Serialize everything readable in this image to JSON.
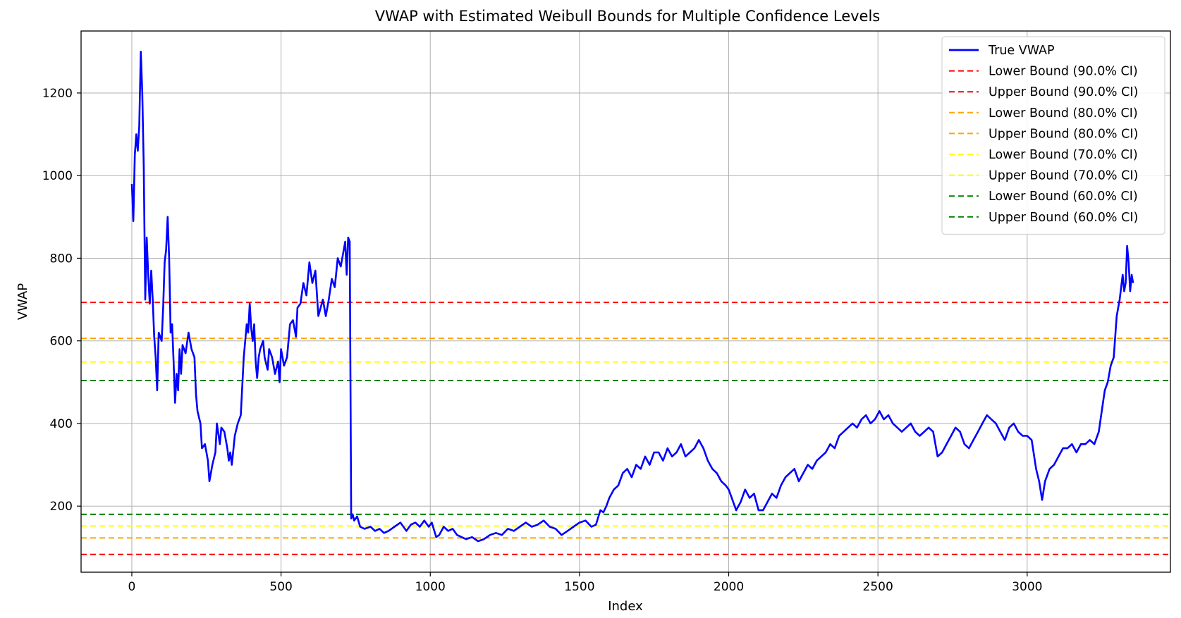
{
  "chart_data": {
    "type": "line",
    "title": "VWAP with Estimated Weibull Bounds for Multiple Confidence Levels",
    "xlabel": "Index",
    "ylabel": "VWAP",
    "xlim": [
      -170,
      3480
    ],
    "ylim": [
      40,
      1350
    ],
    "xticks": [
      0,
      500,
      1000,
      1500,
      2000,
      2500,
      3000
    ],
    "yticks": [
      200,
      400,
      600,
      800,
      1000,
      1200
    ],
    "grid": true,
    "legend_position": "top-right",
    "series": [
      {
        "name": "True VWAP",
        "color": "#0000ff",
        "style": "solid",
        "points": [
          [
            0,
            980
          ],
          [
            5,
            890
          ],
          [
            10,
            1050
          ],
          [
            15,
            1100
          ],
          [
            20,
            1060
          ],
          [
            25,
            1120
          ],
          [
            30,
            1300
          ],
          [
            35,
            1200
          ],
          [
            40,
            1020
          ],
          [
            45,
            700
          ],
          [
            50,
            850
          ],
          [
            55,
            760
          ],
          [
            60,
            690
          ],
          [
            65,
            770
          ],
          [
            70,
            700
          ],
          [
            75,
            610
          ],
          [
            80,
            560
          ],
          [
            85,
            480
          ],
          [
            90,
            620
          ],
          [
            100,
            600
          ],
          [
            105,
            680
          ],
          [
            110,
            790
          ],
          [
            115,
            820
          ],
          [
            120,
            900
          ],
          [
            125,
            800
          ],
          [
            130,
            620
          ],
          [
            135,
            640
          ],
          [
            140,
            550
          ],
          [
            145,
            450
          ],
          [
            150,
            520
          ],
          [
            155,
            480
          ],
          [
            160,
            580
          ],
          [
            165,
            520
          ],
          [
            170,
            590
          ],
          [
            180,
            570
          ],
          [
            190,
            620
          ],
          [
            200,
            580
          ],
          [
            210,
            560
          ],
          [
            215,
            470
          ],
          [
            220,
            430
          ],
          [
            230,
            400
          ],
          [
            235,
            340
          ],
          [
            245,
            350
          ],
          [
            255,
            310
          ],
          [
            260,
            260
          ],
          [
            270,
            300
          ],
          [
            280,
            330
          ],
          [
            285,
            400
          ],
          [
            295,
            350
          ],
          [
            300,
            390
          ],
          [
            310,
            380
          ],
          [
            320,
            340
          ],
          [
            325,
            310
          ],
          [
            330,
            330
          ],
          [
            335,
            300
          ],
          [
            345,
            370
          ],
          [
            355,
            400
          ],
          [
            365,
            420
          ],
          [
            375,
            560
          ],
          [
            385,
            640
          ],
          [
            390,
            620
          ],
          [
            395,
            690
          ],
          [
            400,
            630
          ],
          [
            405,
            600
          ],
          [
            410,
            640
          ],
          [
            415,
            550
          ],
          [
            420,
            510
          ],
          [
            425,
            560
          ],
          [
            430,
            580
          ],
          [
            440,
            600
          ],
          [
            445,
            560
          ],
          [
            455,
            530
          ],
          [
            460,
            580
          ],
          [
            470,
            560
          ],
          [
            480,
            520
          ],
          [
            490,
            550
          ],
          [
            495,
            500
          ],
          [
            500,
            580
          ],
          [
            510,
            540
          ],
          [
            520,
            560
          ],
          [
            530,
            640
          ],
          [
            540,
            650
          ],
          [
            550,
            610
          ],
          [
            555,
            680
          ],
          [
            565,
            690
          ],
          [
            575,
            740
          ],
          [
            585,
            710
          ],
          [
            595,
            790
          ],
          [
            605,
            740
          ],
          [
            615,
            770
          ],
          [
            625,
            660
          ],
          [
            640,
            700
          ],
          [
            650,
            660
          ],
          [
            660,
            700
          ],
          [
            670,
            750
          ],
          [
            680,
            730
          ],
          [
            690,
            800
          ],
          [
            700,
            780
          ],
          [
            710,
            820
          ],
          [
            715,
            840
          ],
          [
            720,
            760
          ],
          [
            725,
            850
          ],
          [
            730,
            840
          ],
          [
            735,
            170
          ],
          [
            740,
            180
          ],
          [
            745,
            165
          ],
          [
            755,
            175
          ],
          [
            765,
            150
          ],
          [
            780,
            145
          ],
          [
            800,
            150
          ],
          [
            815,
            140
          ],
          [
            830,
            145
          ],
          [
            845,
            135
          ],
          [
            860,
            140
          ],
          [
            880,
            150
          ],
          [
            900,
            160
          ],
          [
            920,
            140
          ],
          [
            935,
            155
          ],
          [
            950,
            160
          ],
          [
            965,
            150
          ],
          [
            980,
            165
          ],
          [
            995,
            150
          ],
          [
            1005,
            160
          ],
          [
            1020,
            125
          ],
          [
            1030,
            130
          ],
          [
            1045,
            150
          ],
          [
            1060,
            140
          ],
          [
            1075,
            145
          ],
          [
            1090,
            130
          ],
          [
            1105,
            125
          ],
          [
            1120,
            120
          ],
          [
            1140,
            125
          ],
          [
            1160,
            115
          ],
          [
            1180,
            120
          ],
          [
            1200,
            130
          ],
          [
            1220,
            135
          ],
          [
            1240,
            130
          ],
          [
            1260,
            145
          ],
          [
            1280,
            140
          ],
          [
            1300,
            150
          ],
          [
            1320,
            160
          ],
          [
            1340,
            150
          ],
          [
            1360,
            155
          ],
          [
            1380,
            165
          ],
          [
            1400,
            150
          ],
          [
            1420,
            145
          ],
          [
            1440,
            130
          ],
          [
            1460,
            140
          ],
          [
            1480,
            150
          ],
          [
            1500,
            160
          ],
          [
            1520,
            165
          ],
          [
            1540,
            150
          ],
          [
            1555,
            155
          ],
          [
            1570,
            190
          ],
          [
            1580,
            185
          ],
          [
            1590,
            200
          ],
          [
            1600,
            220
          ],
          [
            1615,
            240
          ],
          [
            1630,
            250
          ],
          [
            1645,
            280
          ],
          [
            1660,
            290
          ],
          [
            1675,
            270
          ],
          [
            1690,
            300
          ],
          [
            1705,
            290
          ],
          [
            1720,
            320
          ],
          [
            1735,
            300
          ],
          [
            1750,
            330
          ],
          [
            1765,
            330
          ],
          [
            1780,
            310
          ],
          [
            1795,
            340
          ],
          [
            1810,
            320
          ],
          [
            1825,
            330
          ],
          [
            1840,
            350
          ],
          [
            1855,
            320
          ],
          [
            1870,
            330
          ],
          [
            1885,
            340
          ],
          [
            1900,
            360
          ],
          [
            1915,
            340
          ],
          [
            1930,
            310
          ],
          [
            1945,
            290
          ],
          [
            1960,
            280
          ],
          [
            1975,
            260
          ],
          [
            1990,
            250
          ],
          [
            2000,
            240
          ],
          [
            2010,
            220
          ],
          [
            2025,
            190
          ],
          [
            2040,
            210
          ],
          [
            2055,
            240
          ],
          [
            2070,
            220
          ],
          [
            2085,
            230
          ],
          [
            2100,
            190
          ],
          [
            2115,
            190
          ],
          [
            2130,
            210
          ],
          [
            2145,
            230
          ],
          [
            2160,
            220
          ],
          [
            2175,
            250
          ],
          [
            2190,
            270
          ],
          [
            2205,
            280
          ],
          [
            2220,
            290
          ],
          [
            2235,
            260
          ],
          [
            2250,
            280
          ],
          [
            2265,
            300
          ],
          [
            2280,
            290
          ],
          [
            2295,
            310
          ],
          [
            2310,
            320
          ],
          [
            2325,
            330
          ],
          [
            2340,
            350
          ],
          [
            2355,
            340
          ],
          [
            2370,
            370
          ],
          [
            2385,
            380
          ],
          [
            2400,
            390
          ],
          [
            2415,
            400
          ],
          [
            2430,
            390
          ],
          [
            2445,
            410
          ],
          [
            2460,
            420
          ],
          [
            2475,
            400
          ],
          [
            2490,
            410
          ],
          [
            2505,
            430
          ],
          [
            2520,
            410
          ],
          [
            2535,
            420
          ],
          [
            2550,
            400
          ],
          [
            2565,
            390
          ],
          [
            2580,
            380
          ],
          [
            2595,
            390
          ],
          [
            2610,
            400
          ],
          [
            2625,
            380
          ],
          [
            2640,
            370
          ],
          [
            2655,
            380
          ],
          [
            2670,
            390
          ],
          [
            2685,
            380
          ],
          [
            2700,
            320
          ],
          [
            2715,
            330
          ],
          [
            2730,
            350
          ],
          [
            2745,
            370
          ],
          [
            2760,
            390
          ],
          [
            2775,
            380
          ],
          [
            2790,
            350
          ],
          [
            2805,
            340
          ],
          [
            2820,
            360
          ],
          [
            2835,
            380
          ],
          [
            2850,
            400
          ],
          [
            2865,
            420
          ],
          [
            2880,
            410
          ],
          [
            2895,
            400
          ],
          [
            2910,
            380
          ],
          [
            2925,
            360
          ],
          [
            2940,
            390
          ],
          [
            2955,
            400
          ],
          [
            2970,
            380
          ],
          [
            2985,
            370
          ],
          [
            3000,
            370
          ],
          [
            3015,
            360
          ],
          [
            3030,
            290
          ],
          [
            3040,
            260
          ],
          [
            3050,
            215
          ],
          [
            3060,
            260
          ],
          [
            3075,
            290
          ],
          [
            3090,
            300
          ],
          [
            3105,
            320
          ],
          [
            3120,
            340
          ],
          [
            3135,
            340
          ],
          [
            3150,
            350
          ],
          [
            3165,
            330
          ],
          [
            3180,
            350
          ],
          [
            3195,
            350
          ],
          [
            3210,
            360
          ],
          [
            3225,
            350
          ],
          [
            3240,
            380
          ],
          [
            3250,
            430
          ],
          [
            3260,
            480
          ],
          [
            3270,
            500
          ],
          [
            3280,
            540
          ],
          [
            3290,
            560
          ],
          [
            3300,
            660
          ],
          [
            3310,
            700
          ],
          [
            3320,
            760
          ],
          [
            3325,
            720
          ],
          [
            3330,
            740
          ],
          [
            3335,
            830
          ],
          [
            3340,
            790
          ],
          [
            3345,
            720
          ],
          [
            3350,
            760
          ],
          [
            3355,
            740
          ]
        ]
      },
      {
        "name": "Lower Bound (90.0% CI)",
        "color": "#ff0000",
        "style": "dashed",
        "y": 83
      },
      {
        "name": "Upper Bound (90.0% CI)",
        "color": "#ff0000",
        "style": "dashed",
        "y": 693
      },
      {
        "name": "Lower Bound (80.0% CI)",
        "color": "#ffa500",
        "style": "dashed",
        "y": 123
      },
      {
        "name": "Upper Bound (80.0% CI)",
        "color": "#ffa500",
        "style": "dashed",
        "y": 606
      },
      {
        "name": "Lower Bound (70.0% CI)",
        "color": "#ffff00",
        "style": "dashed",
        "y": 152
      },
      {
        "name": "Upper Bound (70.0% CI)",
        "color": "#ffff00",
        "style": "dashed",
        "y": 549
      },
      {
        "name": "Lower Bound (60.0% CI)",
        "color": "#008000",
        "style": "dashed",
        "y": 180
      },
      {
        "name": "Upper Bound (60.0% CI)",
        "color": "#008000",
        "style": "dashed",
        "y": 504
      }
    ]
  }
}
